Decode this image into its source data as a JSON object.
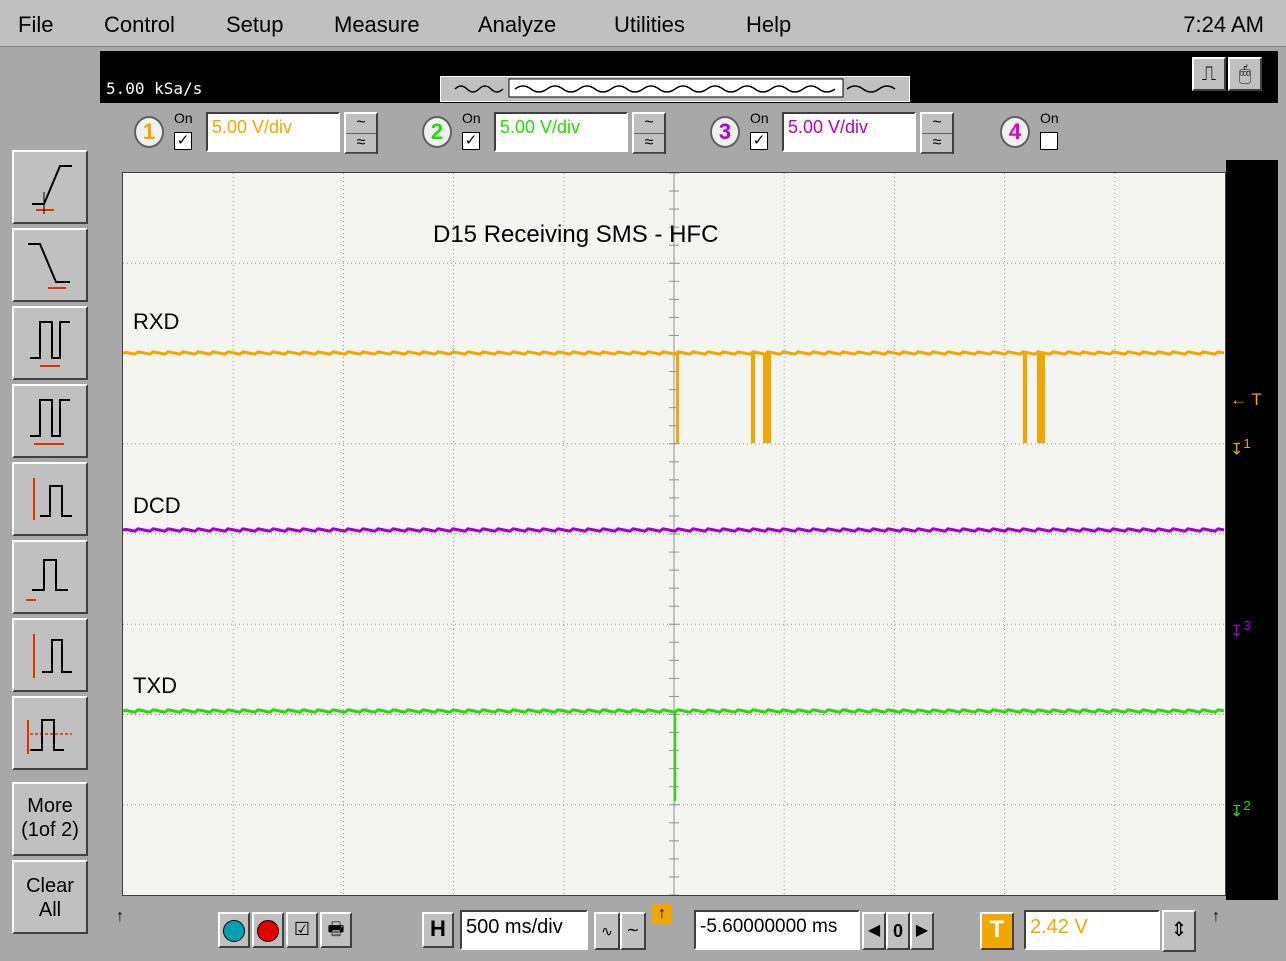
{
  "menu": {
    "items": [
      "File",
      "Control",
      "Setup",
      "Measure",
      "Analyze",
      "Utilities",
      "Help"
    ],
    "clock": "7:24 AM"
  },
  "header": {
    "sample_rate": "5.00 kSa/s"
  },
  "channels": [
    {
      "number": "1",
      "on_label": "On",
      "checked": true,
      "scale": "5.00 V/div",
      "color": "#f0a800"
    },
    {
      "number": "2",
      "on_label": "On",
      "checked": true,
      "scale": "5.00 V/div",
      "color": "#22dd00"
    },
    {
      "number": "3",
      "on_label": "On",
      "checked": true,
      "scale": "5.00 V/div",
      "color": "#b000d0"
    },
    {
      "number": "4",
      "on_label": "On",
      "checked": false,
      "scale": "",
      "color": "#e000c0"
    }
  ],
  "toolbar": {
    "more_label_line1": "More",
    "more_label_line2": "(1of 2)",
    "clear_label_line1": "Clear",
    "clear_label_line2": "All"
  },
  "screen": {
    "annotation": "D15 Receiving SMS - HFC",
    "traces": [
      {
        "label": "RXD",
        "color": "#f0a800"
      },
      {
        "label": "DCD",
        "color": "#a000d0"
      },
      {
        "label": "TXD",
        "color": "#22dd00"
      }
    ],
    "markers": {
      "trigger_level": "← T",
      "ch1": "1",
      "ch3": "3",
      "ch2": "2"
    }
  },
  "bottom": {
    "h_label": "H",
    "timebase": "500 ms/div",
    "delay": "-5.60000000 ms",
    "delay_ref": "0",
    "t_label": "T",
    "trigger_level": "2.42 V"
  }
}
